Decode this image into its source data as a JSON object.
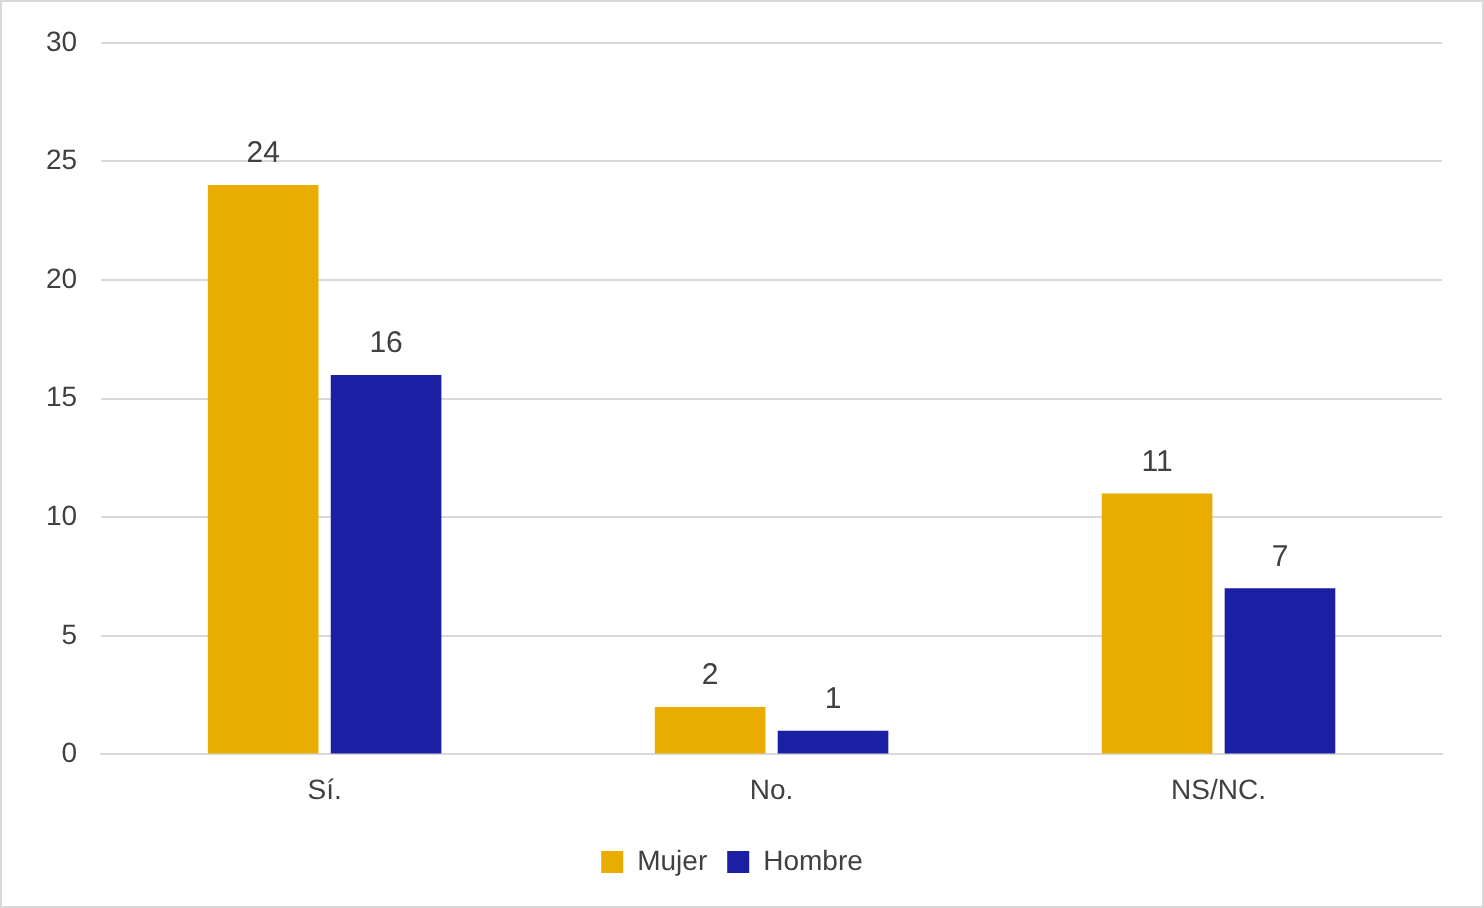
{
  "chart_data": {
    "type": "bar",
    "categories": [
      "Sí.",
      "No.",
      "NS/NC."
    ],
    "series": [
      {
        "name": "Mujer",
        "color": "#e8ad00",
        "values": [
          24,
          2,
          11
        ]
      },
      {
        "name": "Hombre",
        "color": "#1b1fa3",
        "values": [
          16,
          1,
          7
        ]
      }
    ],
    "ylim": [
      0,
      30
    ],
    "yticks": [
      0,
      5,
      10,
      15,
      20,
      25,
      30
    ],
    "grid": "y",
    "legend": "bottom",
    "data_labels": true
  }
}
